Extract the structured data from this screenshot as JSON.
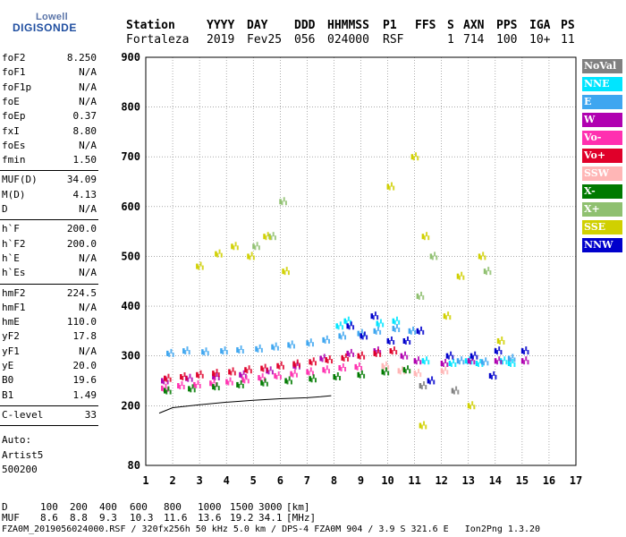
{
  "logo": {
    "top": "Lowell",
    "bottom": "DIGISONDE"
  },
  "header": {
    "labels": [
      "Station",
      "YYYY",
      "DAY",
      "DDD",
      "HHMMSS",
      "P1",
      "FFS",
      "S",
      "AXN",
      "PPS",
      "IGA",
      "PS"
    ],
    "values": [
      "Fortaleza",
      "2019",
      "Fev25",
      "056",
      "024000",
      "RSF",
      "1",
      "714",
      "100",
      "10+",
      "11"
    ]
  },
  "params": {
    "group1": [
      {
        "name": "foF2",
        "value": "8.250"
      },
      {
        "name": "foF1",
        "value": "N/A"
      },
      {
        "name": "foF1p",
        "value": "N/A"
      },
      {
        "name": "foE",
        "value": "N/A"
      },
      {
        "name": "foEp",
        "value": "0.37"
      },
      {
        "name": "fxI",
        "value": "8.80"
      },
      {
        "name": "foEs",
        "value": "N/A"
      },
      {
        "name": "fmin",
        "value": "1.50"
      }
    ],
    "group2": [
      {
        "name": "MUF(D)",
        "value": "34.09"
      },
      {
        "name": "M(D)",
        "value": "4.13"
      },
      {
        "name": "D",
        "value": "N/A"
      }
    ],
    "group3": [
      {
        "name": "h`F",
        "value": "200.0"
      },
      {
        "name": "h`F2",
        "value": "200.0"
      },
      {
        "name": "h`E",
        "value": "N/A"
      },
      {
        "name": "h`Es",
        "value": "N/A"
      }
    ],
    "group4": [
      {
        "name": "hmF2",
        "value": "224.5"
      },
      {
        "name": "hmF1",
        "value": "N/A"
      },
      {
        "name": "hmE",
        "value": "110.0"
      },
      {
        "name": "yF2",
        "value": "17.8"
      },
      {
        "name": "yF1",
        "value": "N/A"
      },
      {
        "name": "yE",
        "value": "20.0"
      },
      {
        "name": "B0",
        "value": "19.6"
      },
      {
        "name": "B1",
        "value": "1.49"
      }
    ],
    "clevel": {
      "name": "C-level",
      "value": "33"
    },
    "auto": [
      "Auto:",
      "Artist5",
      "500200"
    ]
  },
  "legend": [
    {
      "label": "NoVal",
      "bg": "#808080",
      "fg": "#ffffff"
    },
    {
      "label": "NNE",
      "bg": "#00e5ff",
      "fg": "#ffffff"
    },
    {
      "label": "E",
      "bg": "#3ea6f0",
      "fg": "#ffffff"
    },
    {
      "label": "W",
      "bg": "#b000b0",
      "fg": "#ffffff"
    },
    {
      "label": "Vo-",
      "bg": "#ff30b0",
      "fg": "#ffffff"
    },
    {
      "label": "Vo+",
      "bg": "#e0002a",
      "fg": "#ffffff"
    },
    {
      "label": "SSW",
      "bg": "#ffb6b6",
      "fg": "#ffffff"
    },
    {
      "label": "X-",
      "bg": "#007a00",
      "fg": "#ffffff"
    },
    {
      "label": "X+",
      "bg": "#8fc070",
      "fg": "#ffffff"
    },
    {
      "label": "SSE",
      "bg": "#d0d000",
      "fg": "#ffffff"
    },
    {
      "label": "NNW",
      "bg": "#0000cc",
      "fg": "#ffffff"
    }
  ],
  "bottom": {
    "d_label": "D",
    "d_values": [
      "100",
      "200",
      "400",
      "600",
      "800",
      "1000",
      "1500",
      "3000",
      "[km]"
    ],
    "muf_label": "MUF",
    "muf_values": [
      "8.6",
      "8.8",
      "9.3",
      "10.3",
      "11.6",
      "13.6",
      "19.2",
      "34.1",
      "[MHz]"
    ],
    "footer": "FZA0M_2019056024000.RSF / 320fx256h 50 kHz 5.0 km / DPS-4 FZA0M 904 / 3.9 S 321.6 E   Ion2Png 1.3.20"
  },
  "chart_data": {
    "type": "scatter",
    "title": "",
    "xlabel": "",
    "ylabel": "",
    "xlim": [
      1,
      17
    ],
    "ylim": [
      80,
      900
    ],
    "x_ticks": [
      "1",
      "2",
      "3",
      "4",
      "5",
      "6",
      "7",
      "8",
      "9",
      "10",
      "11",
      "12",
      "13",
      "14",
      "15",
      "16",
      "17"
    ],
    "y_ticks": [
      "80",
      "200",
      "300",
      "400",
      "500",
      "600",
      "700",
      "800",
      "900"
    ],
    "grid": true,
    "legend_position": "right",
    "series": [
      {
        "name": "NNE",
        "color": "#00e5ff",
        "points": [
          [
            8.1,
            360
          ],
          [
            8.4,
            370
          ],
          [
            10.2,
            370
          ],
          [
            12.9,
            290
          ],
          [
            13.3,
            285
          ],
          [
            14.2,
            290
          ],
          [
            14.5,
            285
          ],
          [
            9.6,
            365
          ],
          [
            11.3,
            290
          ],
          [
            12.3,
            285
          ]
        ]
      },
      {
        "name": "E",
        "color": "#3ea6f0",
        "points": [
          [
            1.8,
            305
          ],
          [
            2.4,
            310
          ],
          [
            3.1,
            308
          ],
          [
            3.8,
            310
          ],
          [
            4.4,
            312
          ],
          [
            5.1,
            314
          ],
          [
            5.7,
            318
          ],
          [
            6.3,
            322
          ],
          [
            7.0,
            326
          ],
          [
            7.6,
            332
          ],
          [
            8.2,
            340
          ],
          [
            8.9,
            345
          ],
          [
            9.5,
            350
          ],
          [
            10.2,
            355
          ],
          [
            10.8,
            350
          ],
          [
            12.6,
            290
          ],
          [
            13.5,
            288
          ],
          [
            14.5,
            295
          ]
        ]
      },
      {
        "name": "W",
        "color": "#b000b0",
        "points": [
          [
            1.6,
            250
          ],
          [
            2.5,
            255
          ],
          [
            3.5,
            258
          ],
          [
            4.5,
            262
          ],
          [
            5.5,
            270
          ],
          [
            6.5,
            280
          ],
          [
            7.5,
            295
          ],
          [
            8.5,
            305
          ],
          [
            9.5,
            310
          ],
          [
            10.5,
            300
          ],
          [
            11.0,
            290
          ],
          [
            12.0,
            285
          ],
          [
            13.0,
            290
          ],
          [
            14.0,
            290
          ],
          [
            15.0,
            290
          ]
        ]
      },
      {
        "name": "Vo-",
        "color": "#ff30b0",
        "points": [
          [
            1.6,
            235
          ],
          [
            2.2,
            240
          ],
          [
            2.8,
            242
          ],
          [
            3.4,
            245
          ],
          [
            4.0,
            248
          ],
          [
            4.6,
            252
          ],
          [
            5.2,
            256
          ],
          [
            5.8,
            260
          ],
          [
            6.4,
            264
          ],
          [
            7.0,
            268
          ],
          [
            7.6,
            272
          ],
          [
            8.2,
            276
          ],
          [
            8.8,
            278
          ]
        ]
      },
      {
        "name": "Vo+",
        "color": "#e0002a",
        "points": [
          [
            1.7,
            255
          ],
          [
            2.3,
            258
          ],
          [
            2.9,
            262
          ],
          [
            3.5,
            265
          ],
          [
            4.1,
            268
          ],
          [
            4.7,
            272
          ],
          [
            5.3,
            275
          ],
          [
            5.9,
            280
          ],
          [
            6.5,
            284
          ],
          [
            7.1,
            288
          ],
          [
            7.7,
            292
          ],
          [
            8.3,
            296
          ],
          [
            8.9,
            300
          ],
          [
            9.5,
            305
          ],
          [
            10.1,
            310
          ]
        ]
      },
      {
        "name": "SSW",
        "color": "#ffb6b6",
        "points": [
          [
            9.8,
            280
          ],
          [
            10.4,
            270
          ],
          [
            11.0,
            265
          ],
          [
            12.0,
            270
          ]
        ]
      },
      {
        "name": "X-",
        "color": "#007a00",
        "points": [
          [
            1.7,
            230
          ],
          [
            2.6,
            234
          ],
          [
            3.5,
            238
          ],
          [
            4.4,
            242
          ],
          [
            5.3,
            246
          ],
          [
            6.2,
            250
          ],
          [
            7.1,
            254
          ],
          [
            8.0,
            258
          ],
          [
            8.9,
            262
          ],
          [
            9.8,
            268
          ],
          [
            10.6,
            272
          ]
        ]
      },
      {
        "name": "X+",
        "color": "#8fc070",
        "points": [
          [
            5.0,
            520
          ],
          [
            5.6,
            540
          ],
          [
            6.0,
            610
          ],
          [
            11.6,
            500
          ],
          [
            13.6,
            470
          ],
          [
            11.1,
            420
          ]
        ]
      },
      {
        "name": "SSE",
        "color": "#d0d000",
        "points": [
          [
            2.9,
            480
          ],
          [
            3.6,
            505
          ],
          [
            4.2,
            520
          ],
          [
            4.8,
            500
          ],
          [
            5.4,
            540
          ],
          [
            6.1,
            470
          ],
          [
            10.0,
            640
          ],
          [
            10.9,
            700
          ],
          [
            11.3,
            540
          ],
          [
            12.1,
            380
          ],
          [
            12.6,
            460
          ],
          [
            13.4,
            500
          ],
          [
            14.1,
            330
          ],
          [
            13.0,
            200
          ],
          [
            11.2,
            160
          ]
        ]
      },
      {
        "name": "NNW",
        "color": "#0000cc",
        "points": [
          [
            8.5,
            360
          ],
          [
            9.0,
            340
          ],
          [
            9.4,
            380
          ],
          [
            10.0,
            330
          ],
          [
            10.6,
            330
          ],
          [
            11.1,
            350
          ],
          [
            12.2,
            300
          ],
          [
            13.1,
            300
          ],
          [
            14.0,
            310
          ],
          [
            15.0,
            310
          ],
          [
            11.5,
            250
          ],
          [
            13.8,
            260
          ]
        ]
      },
      {
        "name": "NoVal",
        "color": "#808080",
        "points": [
          [
            11.2,
            240
          ],
          [
            12.4,
            230
          ]
        ]
      }
    ],
    "trace": {
      "x": [
        1.5,
        2.0,
        3.0,
        4.0,
        5.0,
        6.0,
        7.0,
        7.5,
        7.9
      ],
      "y": [
        185,
        196,
        202,
        207,
        211,
        214,
        216,
        218,
        220
      ]
    }
  }
}
